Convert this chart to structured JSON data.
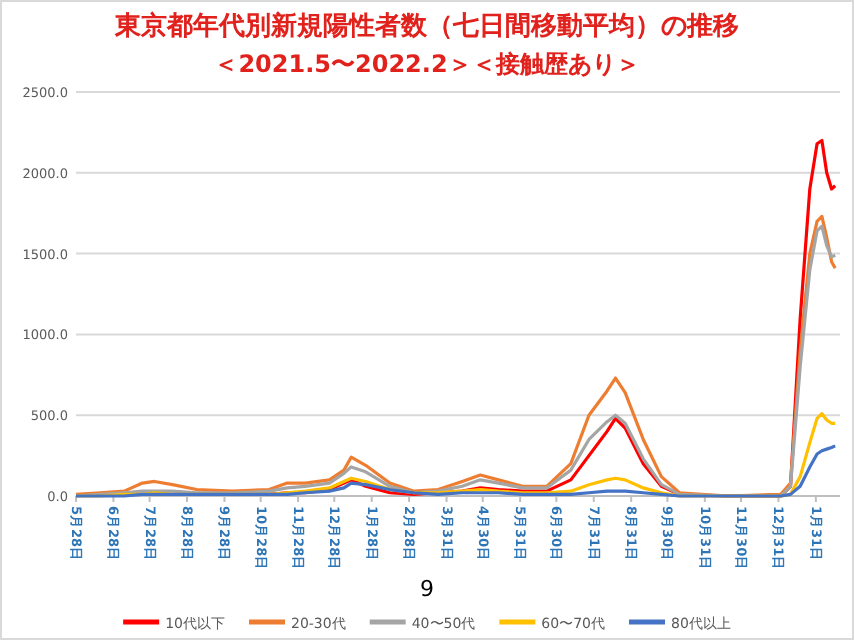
{
  "chart_data": {
    "type": "line",
    "title": "東京都年代別新規陽性者数（七日間移動平均）の推移",
    "subtitle": "＜2021.5〜2022.2＞＜接触歴あり＞",
    "annotations": [
      "9"
    ],
    "x": [
      "2020-05-28",
      "2020-06-17",
      "2020-07-07",
      "2020-07-22",
      "2020-08-01",
      "2020-08-16",
      "2020-09-05",
      "2020-10-05",
      "2020-11-04",
      "2020-11-19",
      "2020-12-04",
      "2020-12-24",
      "2021-01-05",
      "2021-01-11",
      "2021-01-23",
      "2021-02-12",
      "2021-03-04",
      "2021-03-24",
      "2021-04-13",
      "2021-04-28",
      "2021-05-13",
      "2021-06-02",
      "2021-06-22",
      "2021-07-12",
      "2021-07-27",
      "2021-08-11",
      "2021-08-18",
      "2021-08-26",
      "2021-09-10",
      "2021-09-25",
      "2021-10-10",
      "2021-11-19",
      "2022-01-02",
      "2022-01-10",
      "2022-01-18",
      "2022-01-26",
      "2022-02-01",
      "2022-02-05",
      "2022-02-09",
      "2022-02-13",
      "2022-02-16"
    ],
    "series": [
      {
        "name": "10代以下",
        "color": "#ff0000",
        "values": [
          null,
          null,
          null,
          null,
          null,
          null,
          10,
          10,
          10,
          20,
          20,
          40,
          80,
          100,
          60,
          20,
          10,
          20,
          30,
          50,
          40,
          30,
          30,
          100,
          250,
          400,
          480,
          420,
          200,
          60,
          10,
          0,
          0,
          60,
          1100,
          1900,
          2180,
          2200,
          2000,
          1900,
          1920
        ]
      },
      {
        "name": "20-30代",
        "color": "#ed7d31",
        "values": [
          10,
          20,
          30,
          80,
          90,
          70,
          40,
          30,
          40,
          80,
          80,
          100,
          160,
          240,
          190,
          80,
          30,
          40,
          90,
          130,
          100,
          60,
          60,
          200,
          500,
          650,
          730,
          640,
          350,
          120,
          20,
          0,
          10,
          80,
          900,
          1500,
          1700,
          1730,
          1600,
          1450,
          1410
        ]
      },
      {
        "name": "40〜50代",
        "color": "#a5a5a5",
        "values": [
          0,
          10,
          20,
          30,
          30,
          30,
          20,
          20,
          30,
          50,
          60,
          80,
          140,
          180,
          150,
          60,
          20,
          30,
          60,
          100,
          80,
          50,
          50,
          160,
          350,
          460,
          500,
          450,
          230,
          70,
          10,
          0,
          0,
          60,
          800,
          1400,
          1640,
          1670,
          1550,
          1480,
          1490
        ]
      },
      {
        "name": "60〜70代",
        "color": "#ffc000",
        "values": [
          0,
          0,
          10,
          10,
          20,
          10,
          10,
          10,
          10,
          20,
          30,
          50,
          90,
          110,
          90,
          40,
          20,
          20,
          30,
          40,
          30,
          20,
          20,
          30,
          70,
          100,
          110,
          100,
          50,
          20,
          0,
          0,
          0,
          10,
          120,
          330,
          480,
          510,
          470,
          450,
          450
        ]
      },
      {
        "name": "80代以上",
        "color": "#4472c4",
        "values": [
          0,
          0,
          0,
          10,
          10,
          10,
          10,
          10,
          10,
          10,
          20,
          30,
          50,
          80,
          70,
          40,
          20,
          10,
          20,
          20,
          20,
          10,
          10,
          10,
          20,
          30,
          30,
          30,
          20,
          10,
          0,
          0,
          0,
          10,
          60,
          180,
          260,
          280,
          290,
          300,
          310
        ]
      }
    ],
    "xlim": [
      "2020-05-28",
      "2022-02-20"
    ],
    "xticks": [
      {
        "value": "2020-05-28",
        "label": "5月28日"
      },
      {
        "value": "2020-06-28",
        "label": "6月28日"
      },
      {
        "value": "2020-07-28",
        "label": "7月28日"
      },
      {
        "value": "2020-08-28",
        "label": "8月28日"
      },
      {
        "value": "2020-09-28",
        "label": "9月28日"
      },
      {
        "value": "2020-10-28",
        "label": "10月28日"
      },
      {
        "value": "2020-11-28",
        "label": "11月28日"
      },
      {
        "value": "2020-12-28",
        "label": "12月28日"
      },
      {
        "value": "2021-01-28",
        "label": "1月28日"
      },
      {
        "value": "2021-02-28",
        "label": "2月28日"
      },
      {
        "value": "2021-03-31",
        "label": "3月31日"
      },
      {
        "value": "2021-04-30",
        "label": "4月30日"
      },
      {
        "value": "2021-05-31",
        "label": "5月31日"
      },
      {
        "value": "2021-06-30",
        "label": "6月30日"
      },
      {
        "value": "2021-07-31",
        "label": "7月31日"
      },
      {
        "value": "2021-08-31",
        "label": "8月31日"
      },
      {
        "value": "2021-09-30",
        "label": "9月30日"
      },
      {
        "value": "2021-10-31",
        "label": "10月31日"
      },
      {
        "value": "2021-11-30",
        "label": "11月30日"
      },
      {
        "value": "2021-12-31",
        "label": "12月31日"
      },
      {
        "value": "2022-01-31",
        "label": "1月31日"
      }
    ],
    "ylim": [
      0,
      2500
    ],
    "yticks": [
      {
        "value": 0,
        "label": "0.0"
      },
      {
        "value": 500,
        "label": "500.0"
      },
      {
        "value": 1000,
        "label": "1000.0"
      },
      {
        "value": 1500,
        "label": "1500.0"
      },
      {
        "value": 2000,
        "label": "2000.0"
      },
      {
        "value": 2500,
        "label": "2500.0"
      }
    ],
    "grid": "y",
    "legend": "bottom"
  }
}
